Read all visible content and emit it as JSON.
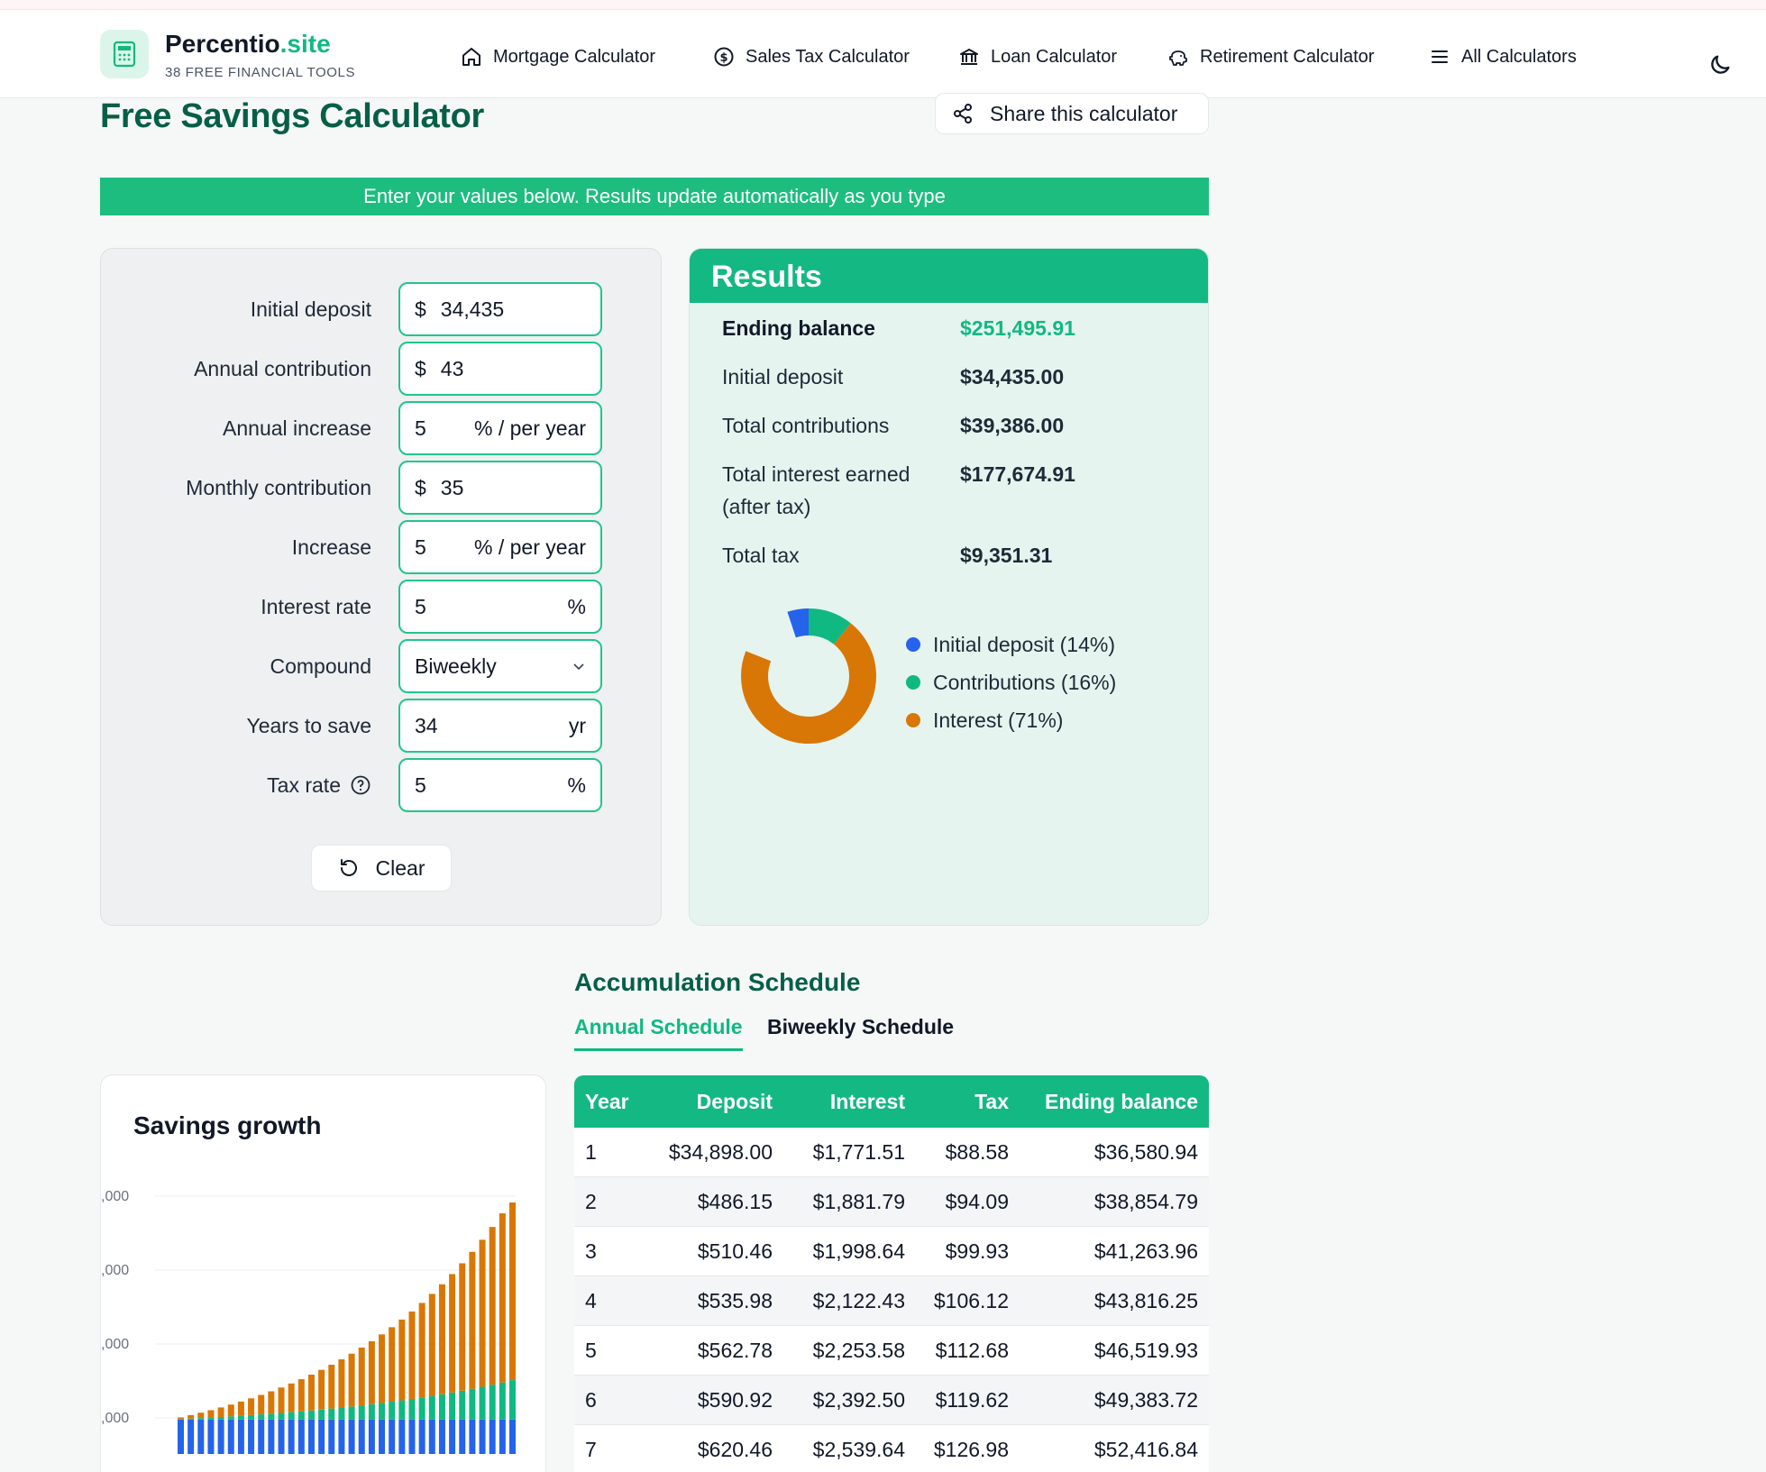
{
  "brand": {
    "name": "Percentio",
    "tld": ".site",
    "tagline": "38 FREE FINANCIAL TOOLS",
    "icon": "calculator-icon"
  },
  "nav": [
    {
      "label": "Mortgage Calculator",
      "icon": "home-icon"
    },
    {
      "label": "Sales Tax Calculator",
      "icon": "dollar-circle-icon"
    },
    {
      "label": "Loan Calculator",
      "icon": "bank-icon"
    },
    {
      "label": "Retirement Calculator",
      "icon": "piggy-bank-icon"
    },
    {
      "label": "All Calculators",
      "icon": "menu-icon"
    }
  ],
  "theme_toggle_icon": "moon-icon",
  "page_title": "Free Savings Calculator",
  "share_label": "Share this calculator",
  "banner": "Enter your values below. Results update automatically as you type",
  "inputs": {
    "initial_deposit": {
      "label": "Initial deposit",
      "prefix": "$",
      "value": "34,435"
    },
    "annual_contribution": {
      "label": "Annual contribution",
      "prefix": "$",
      "value": "43"
    },
    "annual_increase": {
      "label": "Annual increase",
      "value": "5",
      "suffix": "% / per year"
    },
    "monthly_contribution": {
      "label": "Monthly contribution",
      "prefix": "$",
      "value": "35"
    },
    "increase": {
      "label": "Increase",
      "value": "5",
      "suffix": "% / per year"
    },
    "interest_rate": {
      "label": "Interest rate",
      "value": "5",
      "suffix": "%"
    },
    "compound": {
      "label": "Compound",
      "value": "Biweekly"
    },
    "years_to_save": {
      "label": "Years to save",
      "value": "34",
      "suffix": "yr"
    },
    "tax_rate": {
      "label": "Tax rate",
      "value": "5",
      "suffix": "%"
    },
    "clear_label": "Clear"
  },
  "results": {
    "title": "Results",
    "ending_balance": {
      "label": "Ending balance",
      "value": "$251,495.91"
    },
    "initial_deposit": {
      "label": "Initial deposit",
      "value": "$34,435.00"
    },
    "total_contributions": {
      "label": "Total contributions",
      "value": "$39,386.00"
    },
    "total_interest": {
      "label": "Total interest earned (after tax)",
      "value": "$177,674.91"
    },
    "total_tax": {
      "label": "Total tax",
      "value": "$9,351.31"
    },
    "legend": [
      {
        "label": "Initial deposit (14%)",
        "color": "#2563eb",
        "share": 14
      },
      {
        "label": "Contributions (16%)",
        "color": "#10b981",
        "share": 16
      },
      {
        "label": "Interest (71%)",
        "color": "#d97706",
        "share": 71
      }
    ]
  },
  "schedule": {
    "title": "Accumulation Schedule",
    "tabs": [
      "Annual Schedule",
      "Biweekly Schedule"
    ],
    "columns": [
      "Year",
      "Deposit",
      "Interest",
      "Tax",
      "Ending balance"
    ],
    "rows": [
      [
        "1",
        "$34,898.00",
        "$1,771.51",
        "$88.58",
        "$36,580.94"
      ],
      [
        "2",
        "$486.15",
        "$1,881.79",
        "$94.09",
        "$38,854.79"
      ],
      [
        "3",
        "$510.46",
        "$1,998.64",
        "$99.93",
        "$41,263.96"
      ],
      [
        "4",
        "$535.98",
        "$2,122.43",
        "$106.12",
        "$43,816.25"
      ],
      [
        "5",
        "$562.78",
        "$2,253.58",
        "$112.68",
        "$46,519.93"
      ],
      [
        "6",
        "$590.92",
        "$2,392.50",
        "$119.62",
        "$49,383.72"
      ],
      [
        "7",
        "$620.46",
        "$2,539.64",
        "$126.98",
        "$52,416.84"
      ]
    ]
  },
  "chart_data": {
    "type": "bar",
    "title": "Savings growth",
    "stacked": true,
    "y_tick_labels": [
      ",000",
      ",000",
      ",000",
      ",000"
    ],
    "series": [
      {
        "name": "Initial deposit",
        "color": "#2563eb",
        "values": [
          34435,
          34435,
          34435,
          34435,
          34435,
          34435,
          34435,
          34435,
          34435,
          34435,
          34435,
          34435,
          34435,
          34435,
          34435,
          34435,
          34435,
          34435,
          34435,
          34435,
          34435,
          34435,
          34435,
          34435,
          34435,
          34435,
          34435,
          34435,
          34435,
          34435,
          34435,
          34435,
          34435,
          34435
        ]
      },
      {
        "name": "Contributions",
        "color": "#10b981",
        "values": [
          463,
          949,
          1460,
          1996,
          2559,
          3150,
          3770,
          4422,
          5106,
          5824,
          6578,
          7370,
          8201,
          9074,
          9990,
          10952,
          11962,
          13023,
          14137,
          15306,
          16534,
          17823,
          19177,
          20598,
          22090,
          23657,
          25302,
          27029,
          28843,
          30748,
          32748,
          34848,
          37053,
          39386
        ]
      },
      {
        "name": "Interest",
        "color": "#d97706",
        "values": [
          1683,
          3471,
          5369,
          7385,
          9526,
          11799,
          14212,
          16773,
          19491,
          22377,
          25440,
          28692,
          32143,
          35807,
          39697,
          43826,
          48209,
          52862,
          57800,
          63042,
          68607,
          74514,
          80785,
          87442,
          94508,
          102009,
          109971,
          118423,
          127395,
          136919,
          147029,
          157762,
          169155,
          177675
        ]
      }
    ]
  }
}
